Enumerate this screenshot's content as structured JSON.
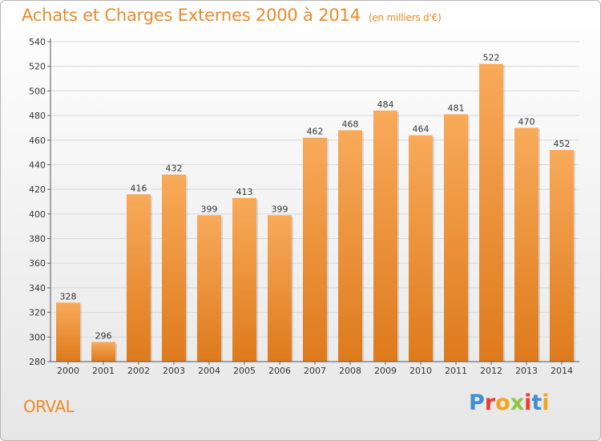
{
  "title": "Achats et Charges Externes 2000 à 2014",
  "subtitle": "(en milliers d'€)",
  "location": "ORVAL",
  "logo": {
    "text": "Proxiti",
    "letter_colors": [
      "#3d8fd8",
      "#ee3b2f",
      "#f2a51a",
      "#8cc63f",
      "#ee3b2f",
      "#3d8fd8",
      "#f2a51a"
    ]
  },
  "colors": {
    "bar_top": "#f8aa5a",
    "bar_bottom": "#de7a1c",
    "title": "#ee8a2a",
    "grid": "#d9d9d9",
    "axis_text": "#333333"
  },
  "chart_data": {
    "type": "bar",
    "title": "Achats et Charges Externes 2000 à 2014",
    "subtitle": "(en milliers d'€)",
    "categories": [
      "2000",
      "2001",
      "2002",
      "2003",
      "2004",
      "2005",
      "2006",
      "2007",
      "2008",
      "2009",
      "2010",
      "2011",
      "2012",
      "2013",
      "2014"
    ],
    "values": [
      328,
      296,
      416,
      432,
      399,
      413,
      399,
      462,
      468,
      484,
      464,
      481,
      522,
      470,
      452
    ],
    "xlabel": "",
    "ylabel": "",
    "ylim": [
      280,
      540
    ],
    "yticks": [
      280,
      300,
      320,
      340,
      360,
      380,
      400,
      420,
      440,
      460,
      480,
      500,
      520,
      540
    ],
    "grid": true,
    "data_labels": true
  }
}
